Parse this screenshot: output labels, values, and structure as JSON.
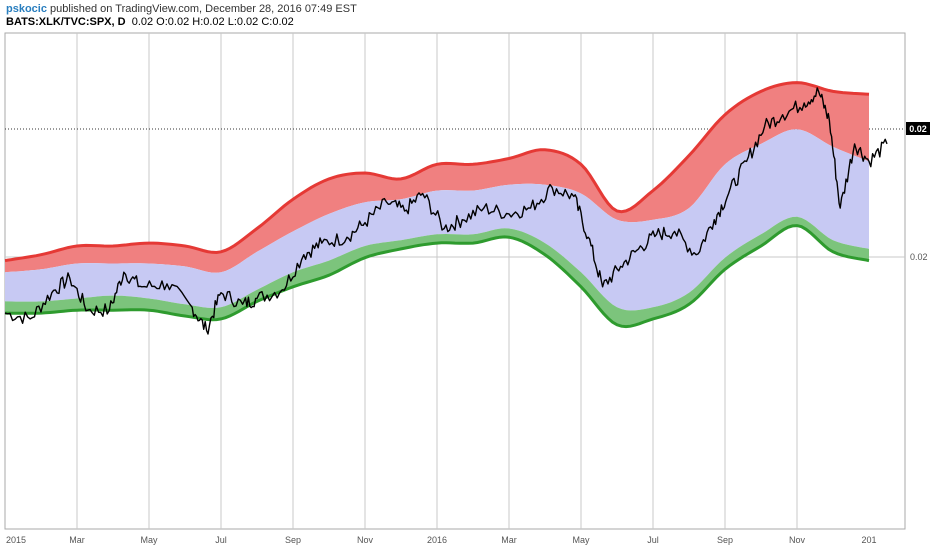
{
  "header": {
    "author": "pskocic",
    "published": " published on TradingView.com, December 28, 2016 07:49 EST",
    "symbol": "BATS:XLK/TVC:SPX, D",
    "ohlc": "0.02 O:0.02 H:0.02 L:0.02 C:0.02"
  },
  "chart_data": {
    "type": "line",
    "title": "BATS:XLK/TVC:SPX, D",
    "x_tick_labels": [
      "2015",
      "Mar",
      "May",
      "Jul",
      "Sep",
      "Nov",
      "2016",
      "Mar",
      "May",
      "Jul",
      "Sep",
      "Nov",
      "201"
    ],
    "y_tick_labels": [
      "0.02"
    ],
    "last_value_label": "0.02",
    "colors": {
      "upper_band": "#e53935",
      "upper_fill": "#f08080",
      "middle_fill": "#c7c9f3",
      "lower_fill": "#7cc47c",
      "lower_band": "#2e9b2e",
      "price": "#000000",
      "last_value_box": "#000000"
    },
    "note_units": "x = date index 0 (Jan 2015) to 24 (Jan 2017) in months; y values are unlabeled in the source, expressed on a 0-100 relative scale",
    "x": [
      0,
      1,
      2,
      3,
      4,
      5,
      6,
      7,
      8,
      9,
      10,
      11,
      12,
      13,
      14,
      15,
      16,
      17,
      18,
      19,
      20,
      21,
      22,
      23,
      24
    ],
    "series": [
      {
        "name": "",
        "values": [
          22,
          24,
          27,
          27,
          28,
          27,
          25,
          33,
          43,
          50,
          52,
          50,
          55,
          55,
          57,
          60,
          55,
          39,
          46,
          58,
          72,
          80,
          83,
          80,
          79
        ]
      },
      {
        "name": "",
        "values": [
          18,
          19,
          21,
          21,
          21,
          20,
          18,
          25,
          32,
          38,
          42,
          43,
          46,
          46,
          48,
          48,
          45,
          36,
          36,
          40,
          55,
          62,
          67,
          61,
          56
        ]
      },
      {
        "name": "",
        "values": [
          12,
          13,
          15,
          15,
          14,
          13,
          11,
          18,
          25,
          29,
          34,
          36,
          38,
          38,
          40,
          38,
          29,
          14,
          16,
          24,
          38,
          46,
          51,
          43,
          36
        ]
      },
      {
        "name": "",
        "values": [
          8,
          8,
          9,
          10,
          9,
          7,
          6,
          12,
          18,
          22,
          27,
          29,
          31,
          31,
          33,
          28,
          18,
          6,
          6,
          11,
          23,
          31,
          37,
          29,
          26
        ]
      },
      {
        "name": "",
        "values": [
          4,
          4,
          5,
          5,
          5,
          3,
          2,
          8,
          13,
          17,
          23,
          26,
          28,
          28,
          30,
          24,
          13,
          0,
          2,
          7,
          19,
          27,
          34,
          25,
          22
        ]
      }
    ],
    "price_keypoints": [
      [
        0,
        4
      ],
      [
        0.7,
        2
      ],
      [
        1.3,
        11
      ],
      [
        1.8,
        16
      ],
      [
        2.3,
        5
      ],
      [
        2.9,
        5
      ],
      [
        3.3,
        18
      ],
      [
        3.8,
        13
      ],
      [
        4.5,
        14
      ],
      [
        5.2,
        6
      ],
      [
        5.6,
        -2
      ],
      [
        6,
        11
      ],
      [
        6.6,
        7
      ],
      [
        7,
        9
      ],
      [
        7.7,
        12
      ],
      [
        8.3,
        24
      ],
      [
        8.8,
        28
      ],
      [
        9.5,
        30
      ],
      [
        10,
        35
      ],
      [
        10.6,
        42
      ],
      [
        11.1,
        39
      ],
      [
        11.6,
        45
      ],
      [
        12.2,
        33
      ],
      [
        12.7,
        36
      ],
      [
        13.3,
        40
      ],
      [
        14,
        38
      ],
      [
        14.6,
        40
      ],
      [
        15.2,
        47
      ],
      [
        15.8,
        44
      ],
      [
        16.2,
        30
      ],
      [
        16.6,
        13
      ],
      [
        17.1,
        20
      ],
      [
        17.6,
        26
      ],
      [
        18.1,
        31
      ],
      [
        18.6,
        32
      ],
      [
        19.2,
        24
      ],
      [
        19.7,
        36
      ],
      [
        20.1,
        45
      ],
      [
        20.6,
        56
      ],
      [
        21.1,
        68
      ],
      [
        21.6,
        72
      ],
      [
        22.2,
        76
      ],
      [
        22.6,
        80
      ],
      [
        22.9,
        70
      ],
      [
        23.2,
        40
      ],
      [
        23.6,
        62
      ],
      [
        24,
        56
      ],
      [
        24.5,
        62
      ]
    ],
    "axis_ranges": {
      "x": [
        0,
        25
      ],
      "y": [
        -70,
        100
      ]
    },
    "grid": true
  }
}
